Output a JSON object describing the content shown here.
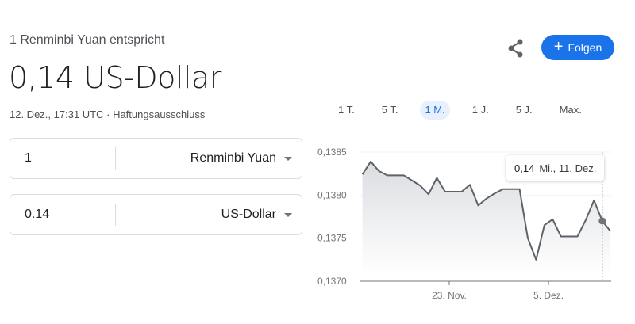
{
  "header": {
    "subtitle": "1 Renminbi Yuan entspricht",
    "result": "0,14 US-Dollar",
    "timestamp": "12. Dez., 17:31 UTC",
    "separator": " · ",
    "disclaimer": "Haftungsausschluss"
  },
  "actions": {
    "share_icon": "share-icon",
    "follow_label": "Folgen",
    "follow_icon": "+",
    "accent": "#1a73e8"
  },
  "ranges": [
    {
      "label": "1 T."
    },
    {
      "label": "5 T."
    },
    {
      "label": "1 M.",
      "active": true
    },
    {
      "label": "1 J."
    },
    {
      "label": "5 J."
    },
    {
      "label": "Max."
    }
  ],
  "converter": {
    "from": {
      "amount": "1",
      "currency": "Renminbi Yuan"
    },
    "to": {
      "amount": "0.14",
      "currency": "US-Dollar"
    }
  },
  "tooltip": {
    "value": "0,14",
    "date": "Mi., 11. Dez."
  },
  "chart_data": {
    "type": "area",
    "line_color": "#5f6368",
    "ylim": [
      0.137,
      0.1385
    ],
    "y_ticks": [
      "0,1385",
      "0,1380",
      "0,1375",
      "0,1370"
    ],
    "y_tick_values": [
      0.1385,
      0.138,
      0.1375,
      0.137
    ],
    "x_ticks": [
      {
        "label": "23. Nov.",
        "date": "2024-11-23"
      },
      {
        "label": "5. Dez.",
        "date": "2024-12-05"
      }
    ],
    "highlight_date": "2024-12-11",
    "x": [
      "2024-11-12",
      "2024-11-13",
      "2024-11-14",
      "2024-11-15",
      "2024-11-16",
      "2024-11-17",
      "2024-11-18",
      "2024-11-19",
      "2024-11-20",
      "2024-11-21",
      "2024-11-22",
      "2024-11-23",
      "2024-11-24",
      "2024-11-25",
      "2024-11-26",
      "2024-11-27",
      "2024-11-28",
      "2024-11-29",
      "2024-11-30",
      "2024-12-01",
      "2024-12-02",
      "2024-12-03",
      "2024-12-04",
      "2024-12-05",
      "2024-12-06",
      "2024-12-07",
      "2024-12-08",
      "2024-12-09",
      "2024-12-10",
      "2024-12-11",
      "2024-12-12"
    ],
    "values": [
      0.13824,
      0.13839,
      0.13828,
      0.13823,
      0.13823,
      0.13823,
      0.13817,
      0.13811,
      0.13801,
      0.1382,
      0.13804,
      0.13804,
      0.13804,
      0.13812,
      0.13788,
      0.13796,
      0.13802,
      0.13807,
      0.13807,
      0.13807,
      0.1375,
      0.13725,
      0.13765,
      0.13772,
      0.13752,
      0.13752,
      0.13752,
      0.13771,
      0.13794,
      0.1377,
      0.13758
    ]
  }
}
